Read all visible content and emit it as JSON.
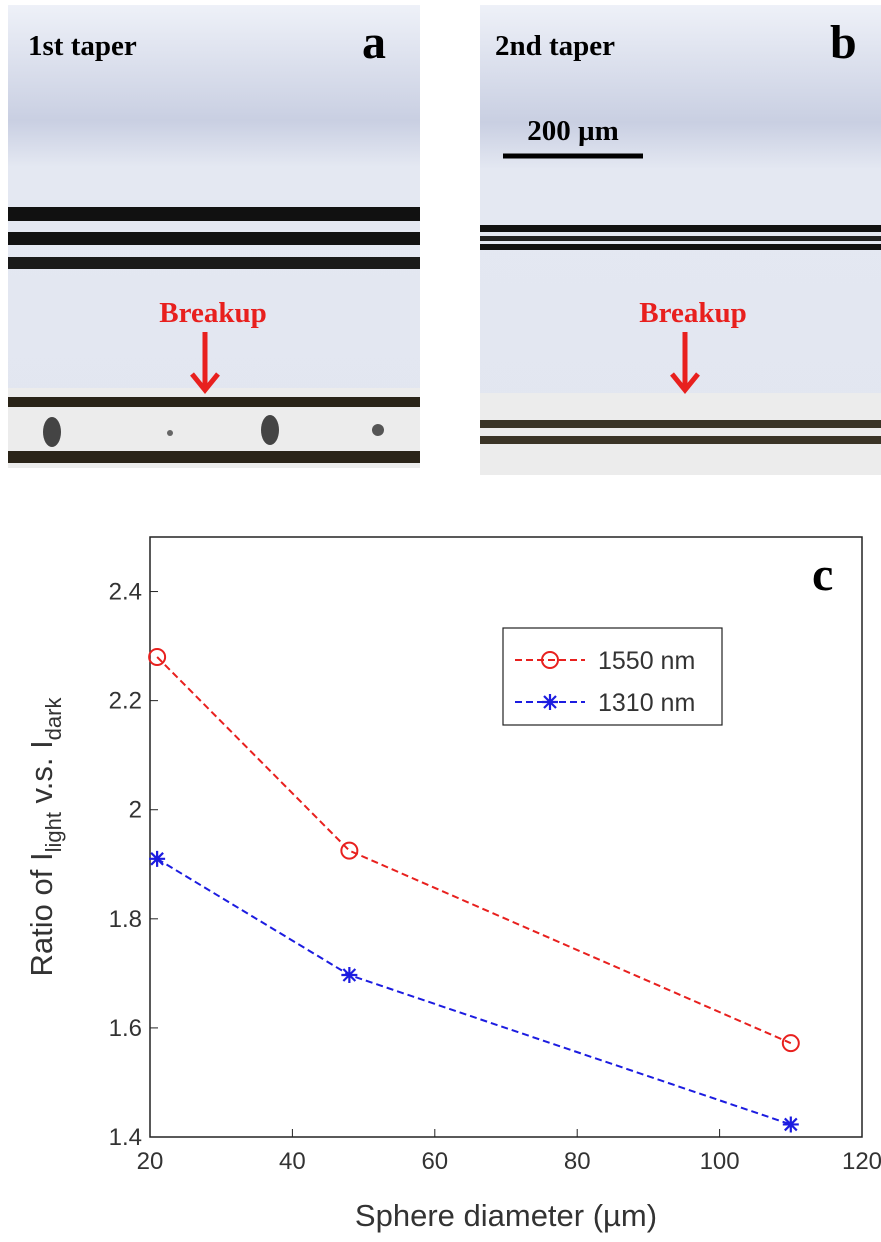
{
  "panels": [
    {
      "caption": "1st taper",
      "label": "a",
      "annotation": "Breakup"
    },
    {
      "caption": "2nd taper",
      "label": "b",
      "annotation": "Breakup",
      "scale_bar": "200 µm"
    }
  ],
  "chart_data": {
    "type": "line",
    "label": "c",
    "xlabel": "Sphere diameter (µm)",
    "ylabel": [
      "Ratio of I",
      "light",
      " v.s. I",
      "dark"
    ],
    "x": [
      21,
      48,
      110
    ],
    "series": [
      {
        "name": "1550 nm",
        "color": "#e8201e",
        "marker": "circle",
        "values": [
          2.28,
          1.925,
          1.572
        ]
      },
      {
        "name": "1310 nm",
        "color": "#1c1ce0",
        "marker": "asterisk",
        "values": [
          1.91,
          1.697,
          1.423
        ]
      }
    ],
    "xlim": [
      20,
      120
    ],
    "xticks": [
      20,
      40,
      60,
      80,
      100,
      120
    ],
    "ylim": [
      1.4,
      2.5
    ],
    "yticks": [
      1.4,
      1.6,
      1.8,
      {
        "value": 2,
        "label": "2"
      },
      2.2,
      2.4
    ],
    "legend": "upper right"
  }
}
